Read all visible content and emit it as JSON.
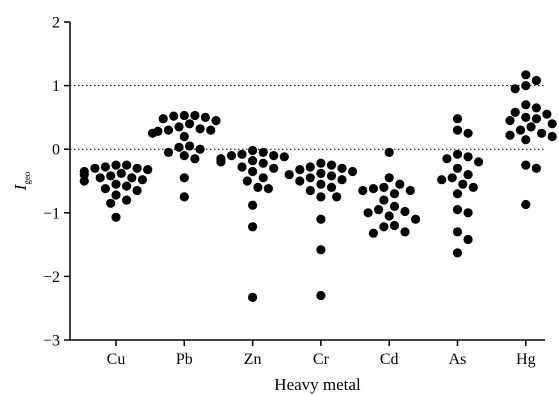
{
  "chart_data": {
    "type": "scatter",
    "title": "",
    "xlabel": "Heavy metal",
    "ylabel": "I",
    "ylabel_subscript": "geo",
    "ylim": [
      -3,
      2
    ],
    "yticks": [
      -3,
      -2,
      -1,
      0,
      1,
      2
    ],
    "ytick_labels": [
      "−3",
      "−2",
      "−1",
      "0",
      "1",
      "2"
    ],
    "categories": [
      "Cu",
      "Pb",
      "Zn",
      "Cr",
      "Cd",
      "As",
      "Hg"
    ],
    "grid": false,
    "legend": "none",
    "point_color": "#000000",
    "reference_lines": [
      {
        "y": 1,
        "style": "dotted"
      },
      {
        "y": 0,
        "style": "dotted"
      }
    ],
    "series": [
      {
        "category": "Cu",
        "values": [
          -0.25,
          -0.25,
          -0.28,
          -0.3,
          -0.3,
          -0.32,
          -0.35,
          -0.38,
          -0.4,
          -0.42,
          -0.45,
          -0.45,
          -0.48,
          -0.5,
          -0.55,
          -0.58,
          -0.62,
          -0.65,
          -0.72,
          -0.8,
          -0.85,
          -1.07
        ]
      },
      {
        "category": "Pb",
        "values": [
          0.53,
          0.53,
          0.52,
          0.5,
          0.48,
          0.45,
          0.4,
          0.35,
          0.32,
          0.3,
          0.3,
          0.28,
          0.25,
          0.2,
          0.05,
          0.03,
          0.0,
          -0.05,
          -0.1,
          -0.15,
          -0.45,
          -0.75
        ]
      },
      {
        "category": "Zn",
        "values": [
          -0.02,
          -0.05,
          -0.08,
          -0.1,
          -0.1,
          -0.12,
          -0.15,
          -0.18,
          -0.2,
          -0.22,
          -0.28,
          -0.3,
          -0.35,
          -0.45,
          -0.5,
          -0.6,
          -0.62,
          -0.88,
          -1.22,
          -2.33
        ]
      },
      {
        "category": "Cr",
        "values": [
          -0.22,
          -0.25,
          -0.28,
          -0.3,
          -0.32,
          -0.35,
          -0.38,
          -0.4,
          -0.42,
          -0.45,
          -0.48,
          -0.5,
          -0.55,
          -0.6,
          -0.65,
          -0.75,
          -0.75,
          -1.1,
          -1.58,
          -2.3
        ]
      },
      {
        "category": "Cd",
        "values": [
          -0.05,
          -0.45,
          -0.55,
          -0.6,
          -0.62,
          -0.65,
          -0.65,
          -0.7,
          -0.8,
          -0.9,
          -0.95,
          -0.98,
          -1.0,
          -1.05,
          -1.1,
          -1.2,
          -1.22,
          -1.3,
          -1.32
        ]
      },
      {
        "category": "As",
        "values": [
          0.48,
          0.3,
          0.25,
          -0.08,
          -0.12,
          -0.15,
          -0.2,
          -0.3,
          -0.4,
          -0.45,
          -0.48,
          -0.55,
          -0.6,
          -0.7,
          -0.95,
          -1.0,
          -1.3,
          -1.42,
          -1.63
        ]
      },
      {
        "category": "Hg",
        "values": [
          1.17,
          1.08,
          1.0,
          0.95,
          0.7,
          0.65,
          0.58,
          0.55,
          0.5,
          0.48,
          0.45,
          0.4,
          0.35,
          0.3,
          0.25,
          0.22,
          0.2,
          0.15,
          -0.25,
          -0.3,
          -0.87
        ]
      }
    ]
  }
}
